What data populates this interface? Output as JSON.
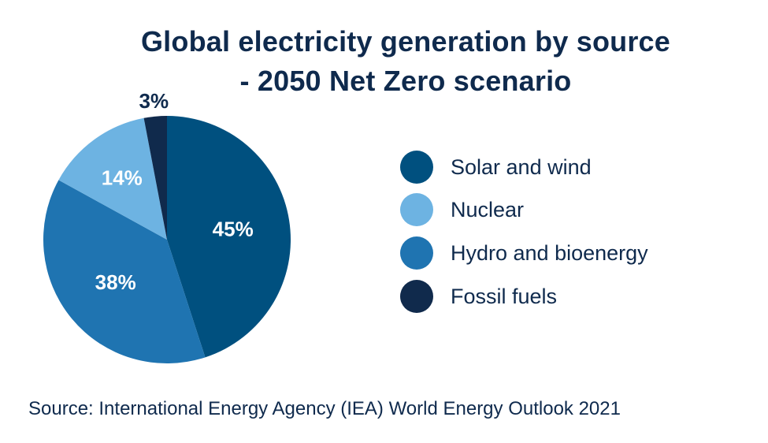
{
  "chart_data": {
    "type": "pie",
    "title_lines": [
      "Global electricity generation by source",
      "- 2050 Net Zero scenario"
    ],
    "categories": [
      "Solar and wind",
      "Hydro and bioenergy",
      "Nuclear",
      "Fossil fuels"
    ],
    "values": [
      45,
      38,
      14,
      3
    ],
    "labels": [
      "45%",
      "38%",
      "14%",
      "3%"
    ],
    "colors": [
      "#00507f",
      "#1f74b1",
      "#6db3e2",
      "#102a4c"
    ],
    "legend": {
      "placement": "right",
      "entries": [
        {
          "label": "Solar and wind",
          "color": "#00507f"
        },
        {
          "label": "Nuclear",
          "color": "#6db3e2"
        },
        {
          "label": "Hydro and bioenergy",
          "color": "#1f74b1"
        },
        {
          "label": "Fossil fuels",
          "color": "#102a4c"
        }
      ]
    },
    "source": "Source: International Energy Agency (IEA) World Energy Outlook 2021"
  }
}
